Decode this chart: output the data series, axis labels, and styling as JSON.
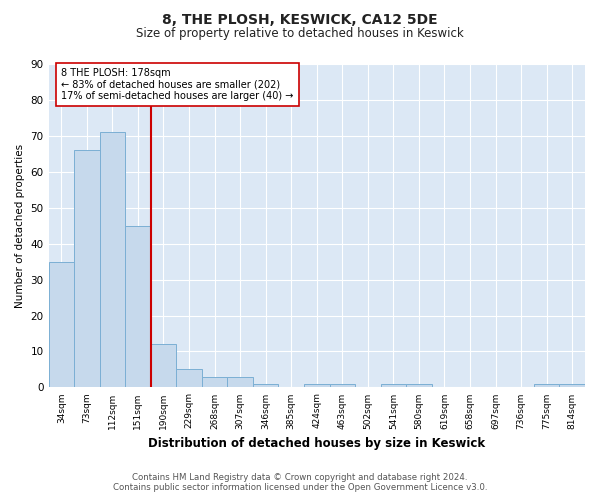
{
  "title1": "8, THE PLOSH, KESWICK, CA12 5DE",
  "title2": "Size of property relative to detached houses in Keswick",
  "xlabel": "Distribution of detached houses by size in Keswick",
  "ylabel": "Number of detached properties",
  "bin_labels": [
    "34sqm",
    "73sqm",
    "112sqm",
    "151sqm",
    "190sqm",
    "229sqm",
    "268sqm",
    "307sqm",
    "346sqm",
    "385sqm",
    "424sqm",
    "463sqm",
    "502sqm",
    "541sqm",
    "580sqm",
    "619sqm",
    "658sqm",
    "697sqm",
    "736sqm",
    "775sqm",
    "814sqm"
  ],
  "bar_values": [
    35,
    66,
    71,
    45,
    12,
    5,
    3,
    3,
    1,
    0,
    1,
    1,
    0,
    1,
    1,
    0,
    0,
    0,
    0,
    1,
    1
  ],
  "bar_color": "#c6d9ec",
  "bar_edge_color": "#7bafd4",
  "vline_color": "#cc0000",
  "annotation_text": "8 THE PLOSH: 178sqm\n← 83% of detached houses are smaller (202)\n17% of semi-detached houses are larger (40) →",
  "annotation_box_color": "#ffffff",
  "annotation_box_edge": "#cc0000",
  "ylim": [
    0,
    90
  ],
  "yticks": [
    0,
    10,
    20,
    30,
    40,
    50,
    60,
    70,
    80,
    90
  ],
  "footer": "Contains HM Land Registry data © Crown copyright and database right 2024.\nContains public sector information licensed under the Open Government Licence v3.0.",
  "bg_color": "#dce8f5",
  "plot_bg_color": "#ffffff"
}
